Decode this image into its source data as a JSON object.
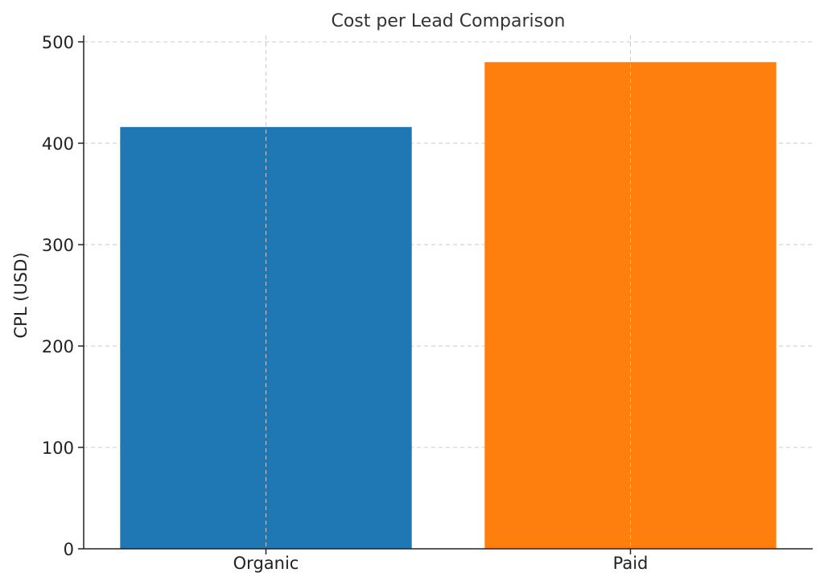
{
  "chart_data": {
    "type": "bar",
    "title": "Cost per Lead Comparison",
    "xlabel": "",
    "ylabel": "CPL (USD)",
    "categories": [
      "Organic",
      "Paid"
    ],
    "values": [
      416,
      480
    ],
    "colors": [
      "#1f77b4",
      "#ff7f0e"
    ],
    "ylim": [
      0,
      500
    ],
    "yticks": [
      0,
      100,
      200,
      300,
      400,
      500
    ],
    "grid": true,
    "legend": "none"
  }
}
